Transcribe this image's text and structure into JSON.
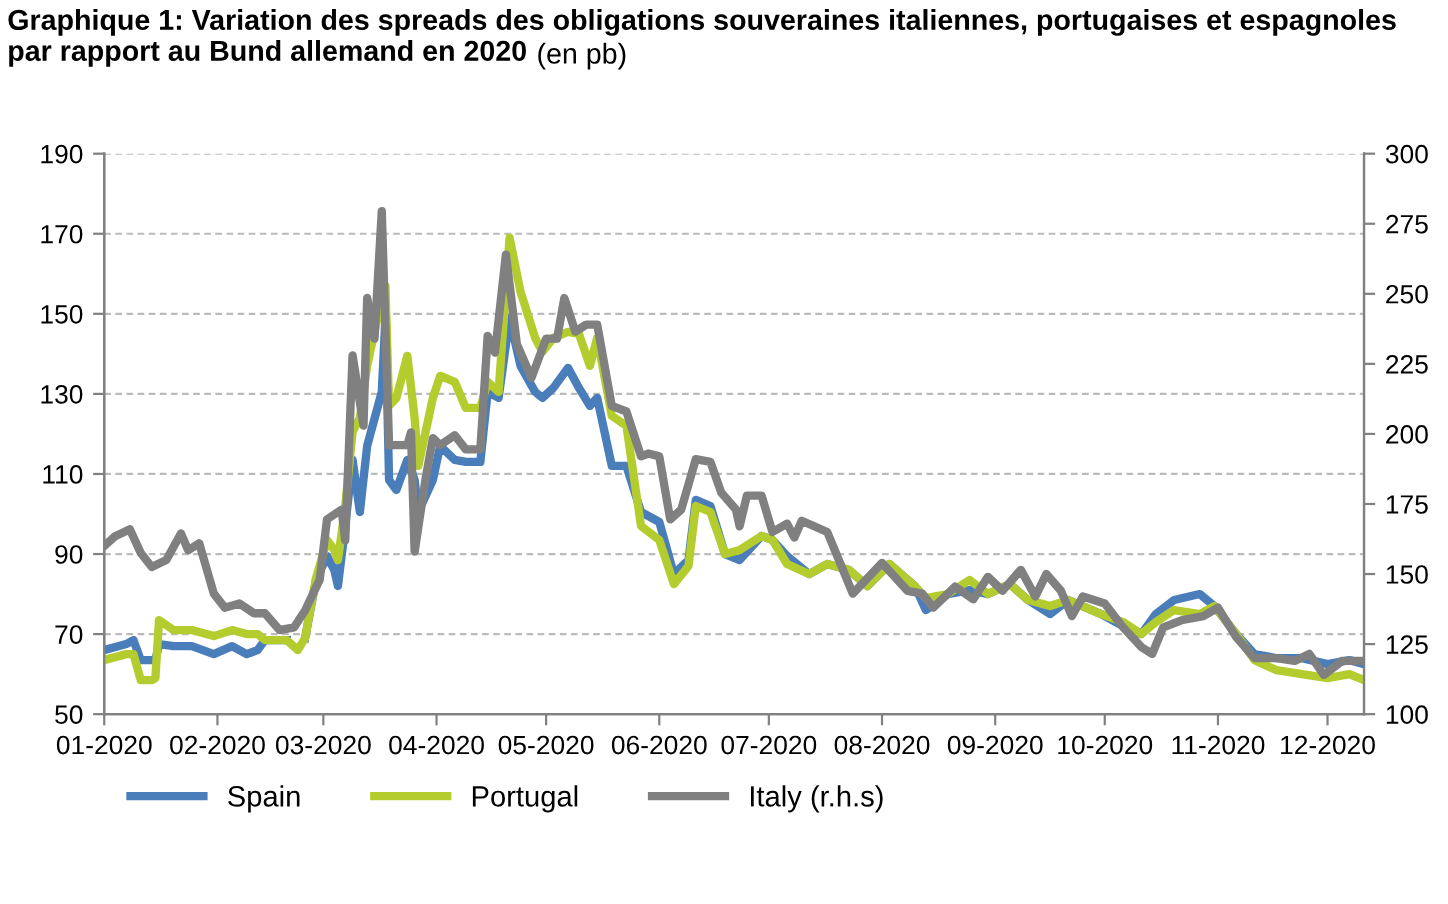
{
  "chart_data": {
    "type": "line",
    "title": "Graphique 1: Variation des spreads des obligations souveraines italiennes, portugaises et espagnoles\npar rapport au Bund allemand en 2020",
    "subtitle": "(en pb)",
    "xlim": [
      "2020-01-01",
      "2020-12-11"
    ],
    "xticks": [
      {
        "value": "2020-01-01",
        "label": "01-2020"
      },
      {
        "value": "2020-02-01",
        "label": "02-2020"
      },
      {
        "value": "2020-03-01",
        "label": "03-2020"
      },
      {
        "value": "2020-04-01",
        "label": "04-2020"
      },
      {
        "value": "2020-05-01",
        "label": "05-2020"
      },
      {
        "value": "2020-06-01",
        "label": "06-2020"
      },
      {
        "value": "2020-07-01",
        "label": "07-2020"
      },
      {
        "value": "2020-08-01",
        "label": "08-2020"
      },
      {
        "value": "2020-09-01",
        "label": "09-2020"
      },
      {
        "value": "2020-10-01",
        "label": "10-2020"
      },
      {
        "value": "2020-11-01",
        "label": "11-2020"
      },
      {
        "value": "2020-12-01",
        "label": "12-2020"
      }
    ],
    "ylim": [
      50,
      190
    ],
    "yticks": [
      50,
      70,
      90,
      110,
      130,
      150,
      170,
      190
    ],
    "y2lim": [
      100,
      300
    ],
    "y2ticks": [
      100,
      125,
      150,
      175,
      200,
      225,
      250,
      275,
      300
    ],
    "grid": "y",
    "legend": "bottom left",
    "marker": "none",
    "line_style": "solid",
    "x": [
      "2020-01-01",
      "2020-01-07",
      "2020-01-09",
      "2020-01-11",
      "2020-01-14",
      "2020-01-15",
      "2020-01-16",
      "2020-01-20",
      "2020-01-25",
      "2020-01-31",
      "2020-02-05",
      "2020-02-09",
      "2020-02-12",
      "2020-02-14",
      "2020-02-20",
      "2020-02-23",
      "2020-02-25",
      "2020-02-28",
      "2020-03-02",
      "2020-03-04",
      "2020-03-05",
      "2020-03-07",
      "2020-03-09",
      "2020-03-11",
      "2020-03-13",
      "2020-03-17",
      "2020-03-18",
      "2020-03-19",
      "2020-03-21",
      "2020-03-24",
      "2020-03-26",
      "2020-03-27",
      "2020-03-31",
      "2020-04-02",
      "2020-04-06",
      "2020-04-09",
      "2020-04-13",
      "2020-04-15",
      "2020-04-18",
      "2020-04-21",
      "2020-04-24",
      "2020-04-28",
      "2020-04-30",
      "2020-05-03",
      "2020-05-07",
      "2020-05-10",
      "2020-05-13",
      "2020-05-15",
      "2020-05-19",
      "2020-05-23",
      "2020-05-27",
      "2020-06-01",
      "2020-06-05",
      "2020-06-09",
      "2020-06-11",
      "2020-06-15",
      "2020-06-19",
      "2020-06-23",
      "2020-06-29",
      "2020-07-02",
      "2020-07-06",
      "2020-07-12",
      "2020-07-17",
      "2020-07-23",
      "2020-07-28",
      "2020-08-03",
      "2020-08-10",
      "2020-08-13",
      "2020-08-19",
      "2020-08-25",
      "2020-08-30",
      "2020-09-05",
      "2020-09-10",
      "2020-09-16",
      "2020-09-21",
      "2020-09-30",
      "2020-10-06",
      "2020-10-11",
      "2020-10-15",
      "2020-10-20",
      "2020-10-27",
      "2020-10-31",
      "2020-11-06",
      "2020-11-11",
      "2020-11-17",
      "2020-11-24",
      "2020-12-01",
      "2020-12-07",
      "2020-12-11"
    ],
    "series": [
      {
        "name": "Spain",
        "color": "#4a7ebb",
        "values": [
          66,
          67.5,
          68.5,
          63.5,
          63.5,
          63.5,
          67.5,
          67,
          67,
          65,
          67,
          65,
          66,
          68.5,
          68.5,
          null,
          69,
          83.5,
          89.5,
          86,
          82,
          97,
          113.5,
          100.5,
          117,
          130.5,
          149,
          108.5,
          106,
          113.5,
          108.5,
          100.5,
          108.5,
          117,
          113.5,
          113,
          113,
          130.5,
          129,
          149,
          137,
          130.5,
          129,
          131.5,
          136.5,
          131.5,
          127,
          129,
          112,
          112,
          100.5,
          98,
          85,
          88.5,
          103.5,
          102,
          90,
          88.5,
          94.5,
          93.5,
          89.5,
          85,
          87.5,
          86,
          82,
          87.5,
          82,
          76,
          80,
          81,
          80,
          82.5,
          78.5,
          75,
          78.5,
          75,
          72,
          70,
          75,
          78.5,
          80,
          77,
          70,
          65,
          64,
          64,
          62.5,
          63.5,
          62.5
        ]
      },
      {
        "name": "Portugal",
        "color": "#b5cc2e",
        "values": [
          63.5,
          65,
          65,
          58.5,
          58.5,
          59,
          73.5,
          71,
          71,
          69.5,
          71,
          70,
          70,
          68.5,
          68.5,
          66,
          69,
          84,
          93.5,
          91,
          88.5,
          102,
          120.5,
          124,
          137,
          154,
          157,
          127,
          129,
          139.5,
          124,
          112,
          129,
          134.5,
          133,
          126.5,
          126.5,
          133,
          130.5,
          169,
          155.5,
          144,
          140.5,
          144,
          145.5,
          145,
          137,
          144,
          124.5,
          122,
          97,
          93.5,
          82.5,
          87,
          102,
          100.5,
          90,
          91,
          94.5,
          93.5,
          87.5,
          85,
          87.5,
          86,
          82,
          87.5,
          82,
          79,
          80,
          83.5,
          80,
          82.5,
          78.5,
          77,
          78.5,
          75,
          73,
          70,
          73,
          76,
          75,
          77,
          70,
          63.5,
          61,
          60,
          59,
          60,
          58.5
        ]
      },
      {
        "name": "Italy (r.h.s)",
        "color": "#808080",
        "axis": "y2",
        "x": [
          "2020-01-01",
          "2020-01-04",
          "2020-01-08",
          "2020-01-11",
          "2020-01-14",
          "2020-01-18",
          "2020-01-22",
          "2020-01-24",
          "2020-01-27",
          "2020-01-31",
          "2020-02-03",
          "2020-02-07",
          "2020-02-11",
          "2020-02-14",
          "2020-02-18",
          "2020-02-22",
          "2020-02-25",
          "2020-02-29",
          "2020-03-02",
          "2020-03-06",
          "2020-03-07",
          "2020-03-09",
          "2020-03-12",
          "2020-03-13",
          "2020-03-15",
          "2020-03-17",
          "2020-03-19",
          "2020-03-24",
          "2020-03-25",
          "2020-03-26",
          "2020-03-29",
          "2020-03-31",
          "2020-04-02",
          "2020-04-06",
          "2020-04-09",
          "2020-04-13",
          "2020-04-15",
          "2020-04-17",
          "2020-04-20",
          "2020-04-23",
          "2020-04-27",
          "2020-05-01",
          "2020-05-04",
          "2020-05-06",
          "2020-05-09",
          "2020-05-12",
          "2020-05-15",
          "2020-05-19",
          "2020-05-23",
          "2020-05-27",
          "2020-05-29",
          "2020-06-01",
          "2020-06-04",
          "2020-06-07",
          "2020-06-11",
          "2020-06-15",
          "2020-06-18",
          "2020-06-22",
          "2020-06-23",
          "2020-06-25",
          "2020-06-29",
          "2020-07-02",
          "2020-07-06",
          "2020-07-08",
          "2020-07-10",
          "2020-07-17",
          "2020-07-24",
          "2020-08-01",
          "2020-08-08",
          "2020-08-12",
          "2020-08-15",
          "2020-08-21",
          "2020-08-26",
          "2020-08-30",
          "2020-09-03",
          "2020-09-08",
          "2020-09-12",
          "2020-09-15",
          "2020-09-19",
          "2020-09-22",
          "2020-09-25",
          "2020-10-01",
          "2020-10-06",
          "2020-10-11",
          "2020-10-14",
          "2020-10-17",
          "2020-10-22",
          "2020-10-28",
          "2020-11-01",
          "2020-11-06",
          "2020-11-11",
          "2020-11-17",
          "2020-11-22",
          "2020-11-26",
          "2020-11-30",
          "2020-12-05",
          "2020-12-11"
        ],
        "values": [
          160,
          163.5,
          166,
          157.5,
          152.5,
          155,
          164.5,
          158.5,
          161,
          143,
          138,
          139.5,
          136,
          136,
          130,
          131,
          137,
          148,
          169.5,
          173,
          162,
          228,
          203,
          248.5,
          234,
          279.5,
          196,
          196,
          200.5,
          158,
          184,
          198.5,
          196,
          199.5,
          194.5,
          194.5,
          235,
          229,
          264,
          232,
          220,
          234,
          234,
          248.5,
          236.5,
          239,
          239,
          210,
          208,
          192,
          193,
          192,
          169.5,
          173,
          191,
          190,
          179,
          173,
          167,
          178,
          178,
          165,
          168,
          163,
          169,
          165,
          143,
          154,
          144,
          143,
          138,
          145.5,
          141,
          149,
          144,
          151.5,
          142,
          150,
          144,
          135,
          142,
          139.5,
          131,
          124,
          121.5,
          131,
          133.5,
          135,
          138,
          127.5,
          120,
          120,
          119,
          121.5,
          114,
          119,
          119
        ]
      }
    ]
  }
}
